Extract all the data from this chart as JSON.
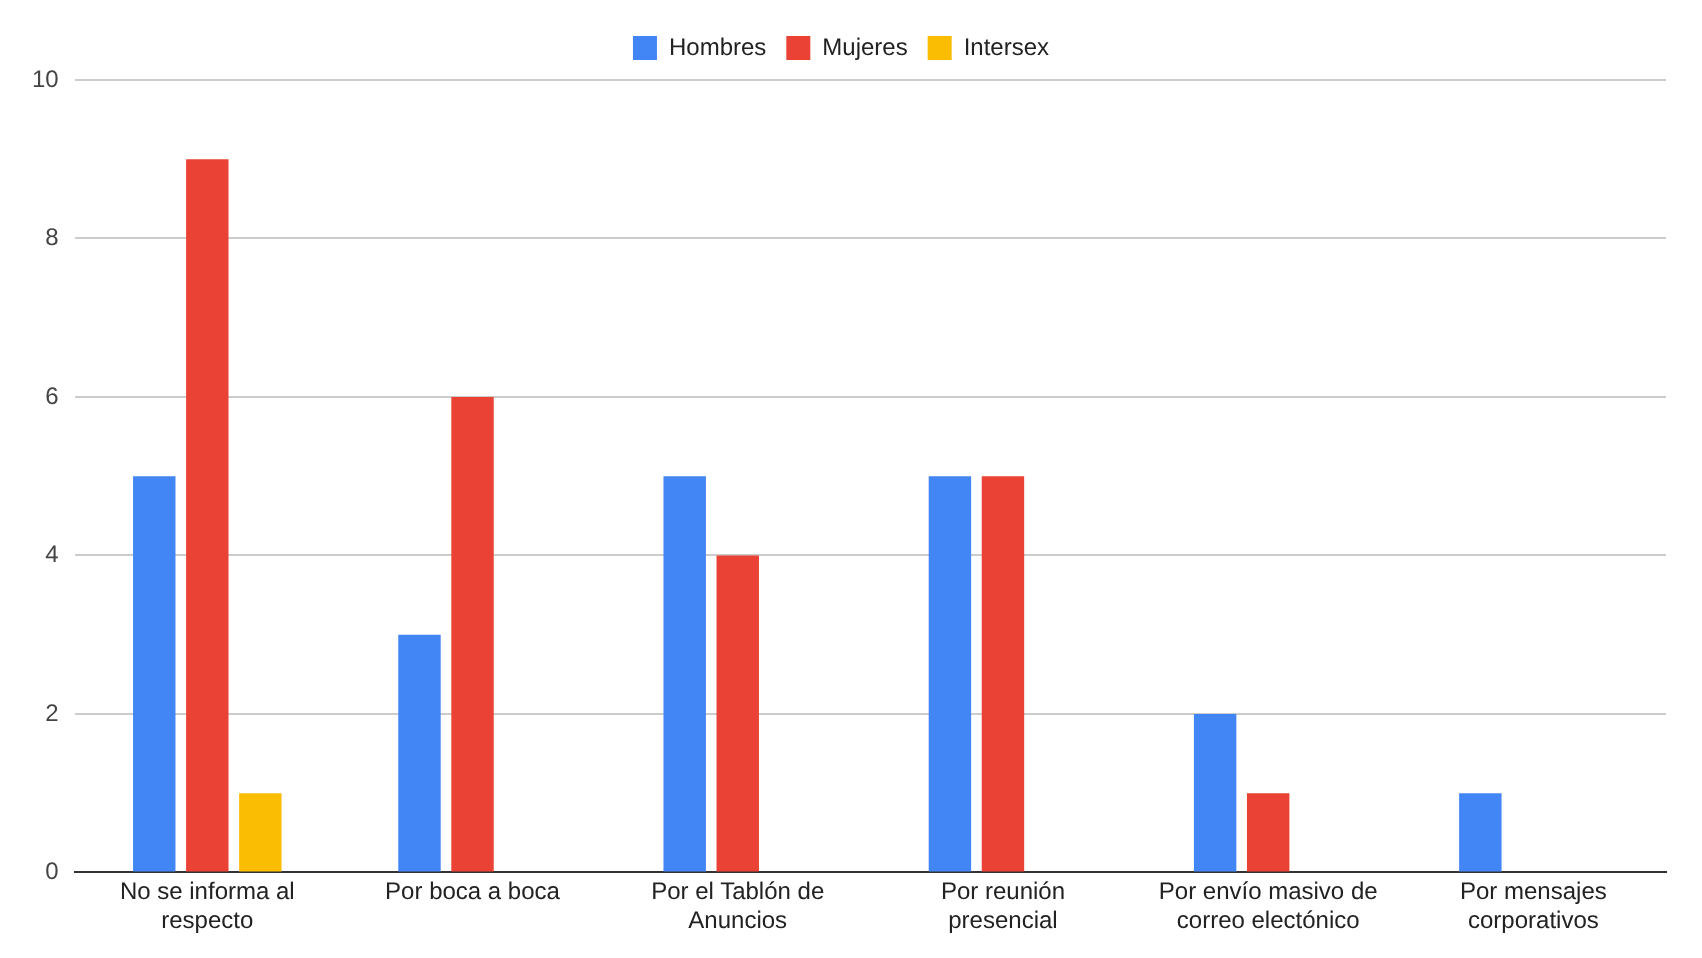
{
  "chart_data": {
    "type": "bar",
    "categories": [
      "No se informa al respecto",
      "Por boca a boca",
      "Por el Tablón de Anuncios",
      "Por reunión presencial",
      "Por envío masivo de correo electónico",
      "Por mensajes corporativos"
    ],
    "series": [
      {
        "name": "Hombres",
        "color": "#4285f4",
        "values": [
          5,
          3,
          5,
          5,
          2,
          1
        ]
      },
      {
        "name": "Mujeres",
        "color": "#ea4335",
        "values": [
          9,
          6,
          4,
          5,
          1,
          0
        ]
      },
      {
        "name": "Intersex",
        "color": "#fbbc04",
        "values": [
          1,
          0,
          0,
          0,
          0,
          0
        ]
      }
    ],
    "ylim": [
      0,
      10
    ],
    "yticks": [
      0,
      2,
      4,
      6,
      8,
      10
    ],
    "grid": "y",
    "legend": "top"
  }
}
